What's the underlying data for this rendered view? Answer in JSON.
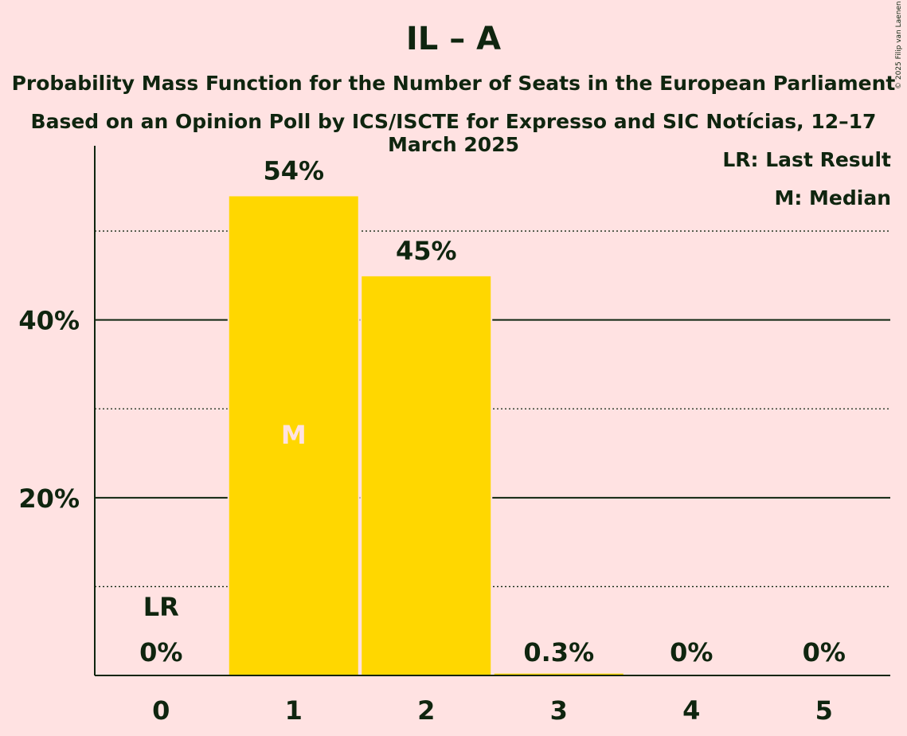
{
  "title": "IL – A",
  "subtitle_line1": "Probability Mass Function for the Number of Seats in the European Parliament",
  "subtitle_line2": "Based on an Opinion Poll by ICS/ISCTE for Expresso and SIC Notícias, 12–17 March 2025",
  "copyright": "© 2025 Filip van Laenen",
  "legend": {
    "lr": "LR: Last Result",
    "m": "M: Median"
  },
  "colors": {
    "background": "#FFE2E2",
    "bar": "#FFD700",
    "text": "#0F250F",
    "median_marker": "#FFE2E2"
  },
  "chart_data": {
    "type": "bar",
    "categories": [
      "0",
      "1",
      "2",
      "3",
      "4",
      "5"
    ],
    "values": [
      0,
      54,
      45,
      0.3,
      0,
      0
    ],
    "value_labels": [
      "0%",
      "54%",
      "45%",
      "0.3%",
      "0%",
      "0%"
    ],
    "ylim": [
      0,
      59
    ],
    "yticks": [
      {
        "value": 20,
        "label": "20%"
      },
      {
        "value": 40,
        "label": "40%"
      }
    ],
    "minor_gridlines": [
      10,
      30,
      50
    ],
    "last_result": {
      "category": "0",
      "label": "LR"
    },
    "median": {
      "category": "1",
      "label": "M"
    },
    "xlabel": "",
    "ylabel": ""
  }
}
